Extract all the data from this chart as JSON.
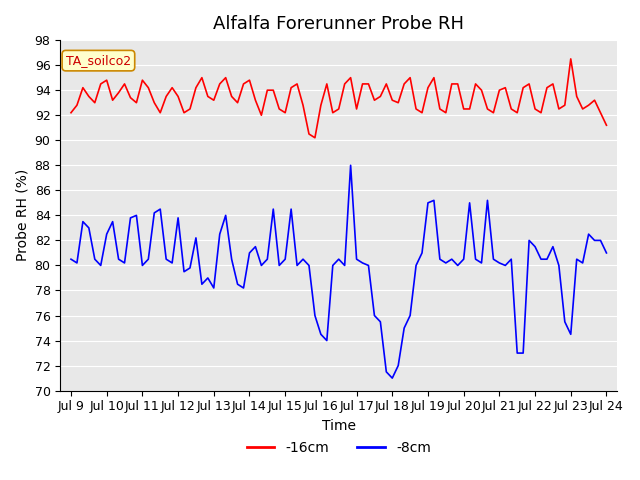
{
  "title": "Alfalfa Forerunner Probe RH",
  "ylabel": "Probe RH (%)",
  "xlabel": "Time",
  "annotation": "TA_soilco2",
  "ylim": [
    70,
    98
  ],
  "yticks": [
    70,
    72,
    74,
    76,
    78,
    80,
    82,
    84,
    86,
    88,
    90,
    92,
    94,
    96,
    98
  ],
  "x_tick_labels": [
    "Jul 9",
    "Jul 10",
    "Jul 11",
    "Jul 12",
    "Jul 13",
    "Jul 14",
    "Jul 15",
    "Jul 16",
    "Jul 17",
    "Jul 18",
    "Jul 19",
    "Jul 20",
    "Jul 21",
    "Jul 22",
    "Jul 23",
    "Jul 24"
  ],
  "color_red": "#ff0000",
  "color_blue": "#0000ff",
  "legend_labels": [
    "-16cm",
    "-8cm"
  ],
  "background_color": "#e8e8e8",
  "title_fontsize": 13,
  "label_fontsize": 10,
  "tick_fontsize": 9,
  "red_data": [
    92.2,
    92.8,
    94.2,
    93.5,
    93.0,
    94.5,
    94.8,
    93.2,
    93.8,
    94.5,
    93.4,
    93.0,
    94.8,
    94.2,
    93.0,
    92.2,
    93.5,
    94.2,
    93.5,
    92.2,
    92.5,
    94.2,
    95.0,
    93.5,
    93.2,
    94.5,
    95.0,
    93.5,
    93.0,
    94.5,
    94.8,
    93.2,
    92.0,
    94.0,
    94.0,
    92.5,
    92.2,
    94.2,
    94.5,
    92.8,
    90.5,
    90.2,
    92.8,
    94.5,
    92.2,
    92.5,
    94.5,
    95.0,
    92.5,
    94.5,
    94.5,
    93.2,
    93.5,
    94.5,
    93.2,
    93.0,
    94.5,
    95.0,
    92.5,
    92.2,
    94.2,
    95.0,
    92.5,
    92.2,
    94.5,
    94.5,
    92.5,
    92.5,
    94.5,
    94.0,
    92.5,
    92.2,
    94.0,
    94.2,
    92.5,
    92.2,
    94.2,
    94.5,
    92.5,
    92.2,
    94.2,
    94.5,
    92.5,
    92.8,
    96.5,
    93.5,
    92.5,
    92.8,
    93.2,
    92.2,
    91.2
  ],
  "blue_data": [
    80.5,
    80.2,
    83.5,
    83.0,
    80.5,
    80.0,
    82.5,
    83.5,
    80.5,
    80.2,
    83.8,
    84.0,
    80.0,
    80.5,
    84.2,
    84.5,
    80.5,
    80.2,
    83.8,
    79.5,
    79.8,
    82.2,
    78.5,
    79.0,
    78.2,
    82.5,
    84.0,
    80.5,
    78.5,
    78.2,
    81.0,
    81.5,
    80.0,
    80.5,
    84.5,
    80.0,
    80.5,
    84.5,
    80.0,
    80.5,
    80.0,
    76.0,
    74.5,
    74.0,
    80.0,
    80.5,
    80.0,
    88.0,
    80.5,
    80.2,
    80.0,
    76.0,
    75.5,
    71.5,
    71.0,
    72.0,
    75.0,
    76.0,
    80.0,
    81.0,
    85.0,
    85.2,
    80.5,
    80.2,
    80.5,
    80.0,
    80.5,
    85.0,
    80.5,
    80.2,
    85.2,
    80.5,
    80.2,
    80.0,
    80.5,
    73.0,
    73.0,
    82.0,
    81.5,
    80.5,
    80.5,
    81.5,
    80.0,
    75.5,
    74.5,
    80.5,
    80.2,
    82.5,
    82.0,
    82.0,
    81.0
  ]
}
